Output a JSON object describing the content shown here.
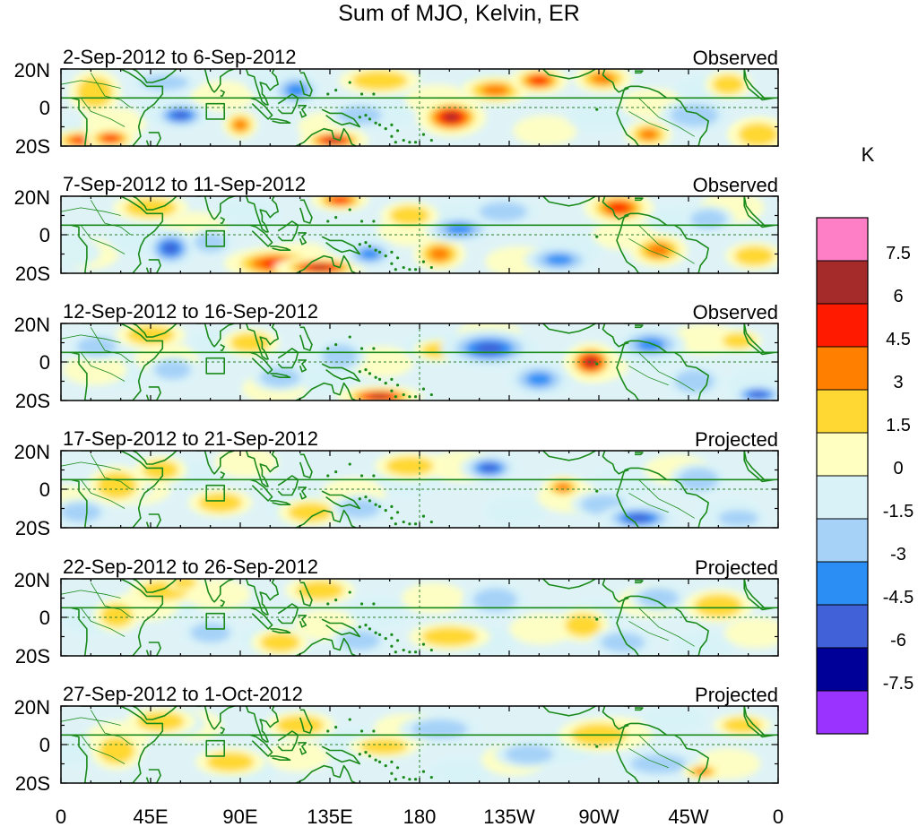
{
  "title": "Sum of MJO, Kelvin, ER",
  "unit": "K",
  "colors": {
    "land": "#1a8a1a",
    "frame": "#000000",
    "guide": "#2b7f2b"
  },
  "lat_labels": [
    "20N",
    "0",
    "20S"
  ],
  "lon_labels": [
    "0",
    "45E",
    "90E",
    "135E",
    "180",
    "135W",
    "90W",
    "45W",
    "0"
  ],
  "panels": [
    {
      "period": "2-Sep-2012 to 6-Sep-2012",
      "status": "Observed"
    },
    {
      "period": "7-Sep-2012 to 11-Sep-2012",
      "status": "Observed"
    },
    {
      "period": "12-Sep-2012 to 16-Sep-2012",
      "status": "Observed"
    },
    {
      "period": "17-Sep-2012 to 21-Sep-2012",
      "status": "Projected"
    },
    {
      "period": "22-Sep-2012 to 26-Sep-2012",
      "status": "Projected"
    },
    {
      "period": "27-Sep-2012 to 1-Oct-2012",
      "status": "Projected"
    }
  ],
  "colorbar": {
    "levels": [
      "7.5",
      "6",
      "4.5",
      "3",
      "1.5",
      "0",
      "-1.5",
      "-3",
      "-4.5",
      "-6",
      "-7.5"
    ],
    "colors": [
      "#ff7fc7",
      "#a52a2a",
      "#ff1a00",
      "#ff7f00",
      "#ffd833",
      "#ffffc2",
      "#d8f2f8",
      "#a6d2f8",
      "#2b8ef5",
      "#4161d8",
      "#000099",
      "#9a33ff"
    ]
  },
  "anomalies": [
    [
      {
        "lon": 10,
        "lat": -17,
        "v": 4.8,
        "rx": 10,
        "ry": 4
      },
      {
        "lon": 25,
        "lat": -16,
        "v": 5.5,
        "rx": 9,
        "ry": 4
      },
      {
        "lon": 17,
        "lat": 8,
        "v": 2.0,
        "rx": 9,
        "ry": 8
      },
      {
        "lon": 60,
        "lat": -4,
        "v": -6.0,
        "rx": 10,
        "ry": 5
      },
      {
        "lon": 52,
        "lat": 13,
        "v": -2.8,
        "rx": 12,
        "ry": 4
      },
      {
        "lon": 90,
        "lat": -9,
        "v": 3.2,
        "rx": 6,
        "ry": 5
      },
      {
        "lon": 118,
        "lat": 9,
        "v": -3.2,
        "rx": 9,
        "ry": 6
      },
      {
        "lon": 137,
        "lat": -17,
        "v": 6.2,
        "rx": 12,
        "ry": 4
      },
      {
        "lon": 150,
        "lat": -4,
        "v": -2.6,
        "rx": 11,
        "ry": 5
      },
      {
        "lon": 160,
        "lat": 14,
        "v": 2.0,
        "rx": 14,
        "ry": 5
      },
      {
        "lon": 196,
        "lat": -5,
        "v": 6.5,
        "rx": 12,
        "ry": 7
      },
      {
        "lon": 218,
        "lat": 9,
        "v": 4.0,
        "rx": 12,
        "ry": 5
      },
      {
        "lon": 240,
        "lat": 14,
        "v": 5.5,
        "rx": 10,
        "ry": 5
      },
      {
        "lon": 272,
        "lat": 15,
        "v": 3.2,
        "rx": 10,
        "ry": 5
      },
      {
        "lon": 295,
        "lat": -14,
        "v": 4.2,
        "rx": 8,
        "ry": 5
      },
      {
        "lon": 318,
        "lat": -4,
        "v": -2.2,
        "rx": 12,
        "ry": 6
      },
      {
        "lon": 350,
        "lat": -14,
        "v": 2.2,
        "rx": 10,
        "ry": 6
      },
      {
        "lon": 335,
        "lat": 12,
        "v": 1.8,
        "rx": 8,
        "ry": 5
      }
    ],
    [
      {
        "lon": 45,
        "lat": 14,
        "v": 1.8,
        "rx": 13,
        "ry": 5
      },
      {
        "lon": 55,
        "lat": -7,
        "v": -4.8,
        "rx": 9,
        "ry": 7
      },
      {
        "lon": 75,
        "lat": -4,
        "v": -2.2,
        "rx": 8,
        "ry": 5
      },
      {
        "lon": 108,
        "lat": -15,
        "v": 5.2,
        "rx": 18,
        "ry": 6
      },
      {
        "lon": 130,
        "lat": -17,
        "v": 6.3,
        "rx": 16,
        "ry": 4
      },
      {
        "lon": 140,
        "lat": 18,
        "v": 4.8,
        "rx": 10,
        "ry": 4
      },
      {
        "lon": 155,
        "lat": -10,
        "v": -4.3,
        "rx": 9,
        "ry": 5
      },
      {
        "lon": 190,
        "lat": -10,
        "v": 3.4,
        "rx": 9,
        "ry": 6
      },
      {
        "lon": 200,
        "lat": 3,
        "v": -4.0,
        "rx": 12,
        "ry": 5
      },
      {
        "lon": 175,
        "lat": 10,
        "v": 2.0,
        "rx": 10,
        "ry": 5
      },
      {
        "lon": 222,
        "lat": 12,
        "v": -2.2,
        "rx": 12,
        "ry": 5
      },
      {
        "lon": 250,
        "lat": -13,
        "v": -3.8,
        "rx": 12,
        "ry": 5
      },
      {
        "lon": 280,
        "lat": 14,
        "v": 5.2,
        "rx": 12,
        "ry": 6
      },
      {
        "lon": 300,
        "lat": -8,
        "v": 3.4,
        "rx": 10,
        "ry": 6
      },
      {
        "lon": 325,
        "lat": 8,
        "v": -2.5,
        "rx": 9,
        "ry": 5
      },
      {
        "lon": 348,
        "lat": -11,
        "v": 2.4,
        "rx": 10,
        "ry": 5
      }
    ],
    [
      {
        "lon": 18,
        "lat": 8,
        "v": -2.4,
        "rx": 10,
        "ry": 5
      },
      {
        "lon": 45,
        "lat": 14,
        "v": 2.0,
        "rx": 12,
        "ry": 5
      },
      {
        "lon": 56,
        "lat": -4,
        "v": -2.6,
        "rx": 9,
        "ry": 5
      },
      {
        "lon": 95,
        "lat": 10,
        "v": 2.0,
        "rx": 10,
        "ry": 5
      },
      {
        "lon": 110,
        "lat": -8,
        "v": -2.4,
        "rx": 10,
        "ry": 5
      },
      {
        "lon": 160,
        "lat": -18,
        "v": 6.3,
        "rx": 15,
        "ry": 4
      },
      {
        "lon": 140,
        "lat": 3,
        "v": -2.8,
        "rx": 9,
        "ry": 6
      },
      {
        "lon": 190,
        "lat": 6,
        "v": 2.6,
        "rx": 9,
        "ry": 4
      },
      {
        "lon": 215,
        "lat": 7,
        "v": -4.6,
        "rx": 17,
        "ry": 7
      },
      {
        "lon": 240,
        "lat": -9,
        "v": -3.2,
        "rx": 11,
        "ry": 6
      },
      {
        "lon": 266,
        "lat": 0,
        "v": 7.0,
        "rx": 9,
        "ry": 7
      },
      {
        "lon": 296,
        "lat": 9,
        "v": -3.6,
        "rx": 12,
        "ry": 6
      },
      {
        "lon": 318,
        "lat": -10,
        "v": -2.2,
        "rx": 10,
        "ry": 6
      },
      {
        "lon": 350,
        "lat": -17,
        "v": -4.8,
        "rx": 10,
        "ry": 4
      },
      {
        "lon": 340,
        "lat": 11,
        "v": 2.0,
        "rx": 8,
        "ry": 4
      }
    ],
    [
      {
        "lon": 28,
        "lat": 2,
        "v": 2.2,
        "rx": 10,
        "ry": 7
      },
      {
        "lon": 50,
        "lat": 10,
        "v": 1.6,
        "rx": 9,
        "ry": 5
      },
      {
        "lon": 10,
        "lat": -12,
        "v": -2.2,
        "rx": 10,
        "ry": 5
      },
      {
        "lon": 80,
        "lat": -7,
        "v": 1.6,
        "rx": 11,
        "ry": 5
      },
      {
        "lon": 125,
        "lat": -12,
        "v": 1.6,
        "rx": 11,
        "ry": 5
      },
      {
        "lon": 150,
        "lat": -10,
        "v": -2.4,
        "rx": 10,
        "ry": 5
      },
      {
        "lon": 175,
        "lat": 12,
        "v": 1.6,
        "rx": 12,
        "ry": 5
      },
      {
        "lon": 215,
        "lat": 11,
        "v": -5.0,
        "rx": 10,
        "ry": 5
      },
      {
        "lon": 252,
        "lat": 1,
        "v": 3.2,
        "rx": 7,
        "ry": 4
      },
      {
        "lon": 272,
        "lat": -8,
        "v": -2.6,
        "rx": 11,
        "ry": 5
      },
      {
        "lon": 290,
        "lat": -15,
        "v": -4.8,
        "rx": 14,
        "ry": 5
      },
      {
        "lon": 320,
        "lat": 5,
        "v": -2.0,
        "rx": 10,
        "ry": 6
      },
      {
        "lon": 340,
        "lat": -15,
        "v": -2.4,
        "rx": 10,
        "ry": 4
      }
    ],
    [
      {
        "lon": 28,
        "lat": 1,
        "v": 2.8,
        "rx": 8,
        "ry": 6
      },
      {
        "lon": 52,
        "lat": 14,
        "v": 1.6,
        "rx": 12,
        "ry": 5
      },
      {
        "lon": 62,
        "lat": 18,
        "v": 3.0,
        "rx": 6,
        "ry": 3
      },
      {
        "lon": 75,
        "lat": -8,
        "v": -2.0,
        "rx": 10,
        "ry": 5
      },
      {
        "lon": 110,
        "lat": -13,
        "v": 1.8,
        "rx": 10,
        "ry": 5
      },
      {
        "lon": 130,
        "lat": 14,
        "v": 1.6,
        "rx": 12,
        "ry": 5
      },
      {
        "lon": 150,
        "lat": -12,
        "v": -2.2,
        "rx": 10,
        "ry": 5
      },
      {
        "lon": 195,
        "lat": -10,
        "v": 1.6,
        "rx": 14,
        "ry": 5
      },
      {
        "lon": 218,
        "lat": 9,
        "v": -2.6,
        "rx": 11,
        "ry": 6
      },
      {
        "lon": 262,
        "lat": -4,
        "v": 2.2,
        "rx": 9,
        "ry": 6
      },
      {
        "lon": 282,
        "lat": -13,
        "v": -2.6,
        "rx": 11,
        "ry": 5
      },
      {
        "lon": 300,
        "lat": 10,
        "v": -2.0,
        "rx": 10,
        "ry": 5
      },
      {
        "lon": 330,
        "lat": 6,
        "v": 1.6,
        "rx": 12,
        "ry": 6
      }
    ],
    [
      {
        "lon": 28,
        "lat": -3,
        "v": 3.0,
        "rx": 9,
        "ry": 7
      },
      {
        "lon": 50,
        "lat": 12,
        "v": 1.6,
        "rx": 12,
        "ry": 5
      },
      {
        "lon": 85,
        "lat": -9,
        "v": 1.6,
        "rx": 12,
        "ry": 5
      },
      {
        "lon": 120,
        "lat": 10,
        "v": 1.6,
        "rx": 12,
        "ry": 5
      },
      {
        "lon": 162,
        "lat": -1,
        "v": 1.6,
        "rx": 12,
        "ry": 4
      },
      {
        "lon": 190,
        "lat": 8,
        "v": -1.8,
        "rx": 14,
        "ry": 5
      },
      {
        "lon": 235,
        "lat": -5,
        "v": -1.8,
        "rx": 12,
        "ry": 5
      },
      {
        "lon": 270,
        "lat": 5,
        "v": 1.6,
        "rx": 14,
        "ry": 6
      },
      {
        "lon": 300,
        "lat": -10,
        "v": -1.8,
        "rx": 14,
        "ry": 5
      },
      {
        "lon": 322,
        "lat": -14,
        "v": 3.2,
        "rx": 7,
        "ry": 3
      },
      {
        "lon": 342,
        "lat": 10,
        "v": 1.6,
        "rx": 10,
        "ry": 4
      }
    ]
  ]
}
